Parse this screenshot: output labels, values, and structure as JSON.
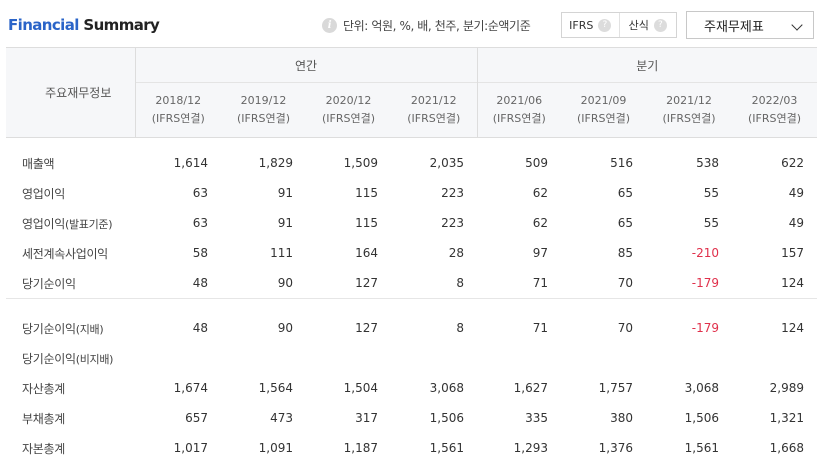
{
  "header": {
    "title_accent": "Financial",
    "title_rest": "Summary",
    "unit_text": "단위: 억원, %, 배, 천주, 분기:순액기준",
    "toggle": [
      {
        "label": "IFRS"
      },
      {
        "label": "산식"
      }
    ],
    "select_value": "주재무제표"
  },
  "table": {
    "row_header": "주요재무정보",
    "group_annual": "연간",
    "group_quarter": "분기",
    "periods": [
      {
        "date": "2018/12",
        "basis": "(IFRS연결)"
      },
      {
        "date": "2019/12",
        "basis": "(IFRS연결)"
      },
      {
        "date": "2020/12",
        "basis": "(IFRS연결)"
      },
      {
        "date": "2021/12",
        "basis": "(IFRS연결)"
      },
      {
        "date": "2021/06",
        "basis": "(IFRS연결)"
      },
      {
        "date": "2021/09",
        "basis": "(IFRS연결)"
      },
      {
        "date": "2021/12",
        "basis": "(IFRS연결)"
      },
      {
        "date": "2022/03",
        "basis": "(IFRS연결)"
      }
    ],
    "rows": [
      {
        "label": "매출액",
        "values": [
          "1,614",
          "1,829",
          "1,509",
          "2,035",
          "509",
          "516",
          "538",
          "622"
        ]
      },
      {
        "label": "영업이익",
        "values": [
          "63",
          "91",
          "115",
          "223",
          "62",
          "65",
          "55",
          "49"
        ]
      },
      {
        "label": "영업이익",
        "label_small": "(발표기준)",
        "values": [
          "63",
          "91",
          "115",
          "223",
          "62",
          "65",
          "55",
          "49"
        ]
      },
      {
        "label": "세전계속사업이익",
        "values": [
          "58",
          "111",
          "164",
          "28",
          "97",
          "85",
          "-210",
          "157"
        ]
      },
      {
        "label": "당기순이익",
        "values": [
          "48",
          "90",
          "127",
          "8",
          "71",
          "70",
          "-179",
          "124"
        ]
      },
      {
        "label": "당기순이익",
        "label_small": "(지배)",
        "values": [
          "48",
          "90",
          "127",
          "8",
          "71",
          "70",
          "-179",
          "124"
        ]
      },
      {
        "label": "당기순이익",
        "label_small": "(비지배)",
        "values": [
          "",
          "",
          "",
          "",
          "",
          "",
          "",
          ""
        ]
      },
      {
        "label": "자산총계",
        "values": [
          "1,674",
          "1,564",
          "1,504",
          "3,068",
          "1,627",
          "1,757",
          "3,068",
          "2,989"
        ]
      },
      {
        "label": "부채총계",
        "values": [
          "657",
          "473",
          "317",
          "1,506",
          "335",
          "380",
          "1,506",
          "1,321"
        ]
      },
      {
        "label": "자본총계",
        "values": [
          "1,017",
          "1,091",
          "1,187",
          "1,561",
          "1,293",
          "1,376",
          "1,561",
          "1,668"
        ]
      }
    ]
  },
  "colors": {
    "accent": "#2a64c8",
    "negative": "#e0304b",
    "header_bg": "#f6f7f9"
  }
}
